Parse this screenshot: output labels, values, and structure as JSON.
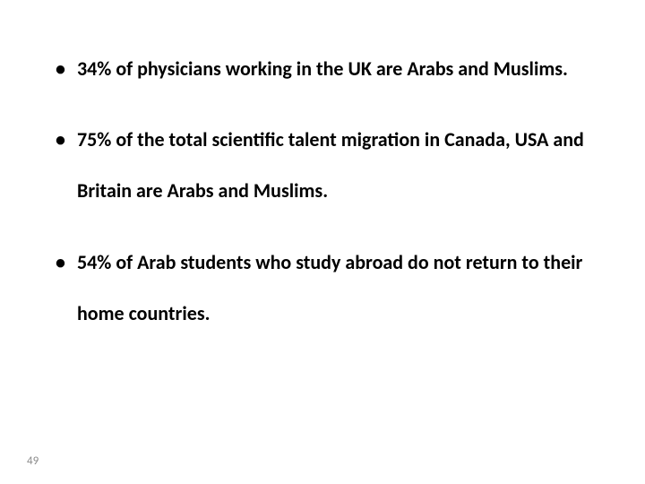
{
  "slide": {
    "bullets": [
      "34% of physicians working in the UK  are Arabs and Muslims.",
      "75% of the total scientific talent migration in Canada, USA and Britain are Arabs and Muslims.",
      "54% of Arab students who study abroad do not return to their home countries."
    ],
    "page_number": "49",
    "text_color": "#000000",
    "page_number_color": "#8a8a8a",
    "background_color": "#ffffff",
    "font_size_pt": 22,
    "font_weight": 700,
    "line_height": 2.6
  }
}
